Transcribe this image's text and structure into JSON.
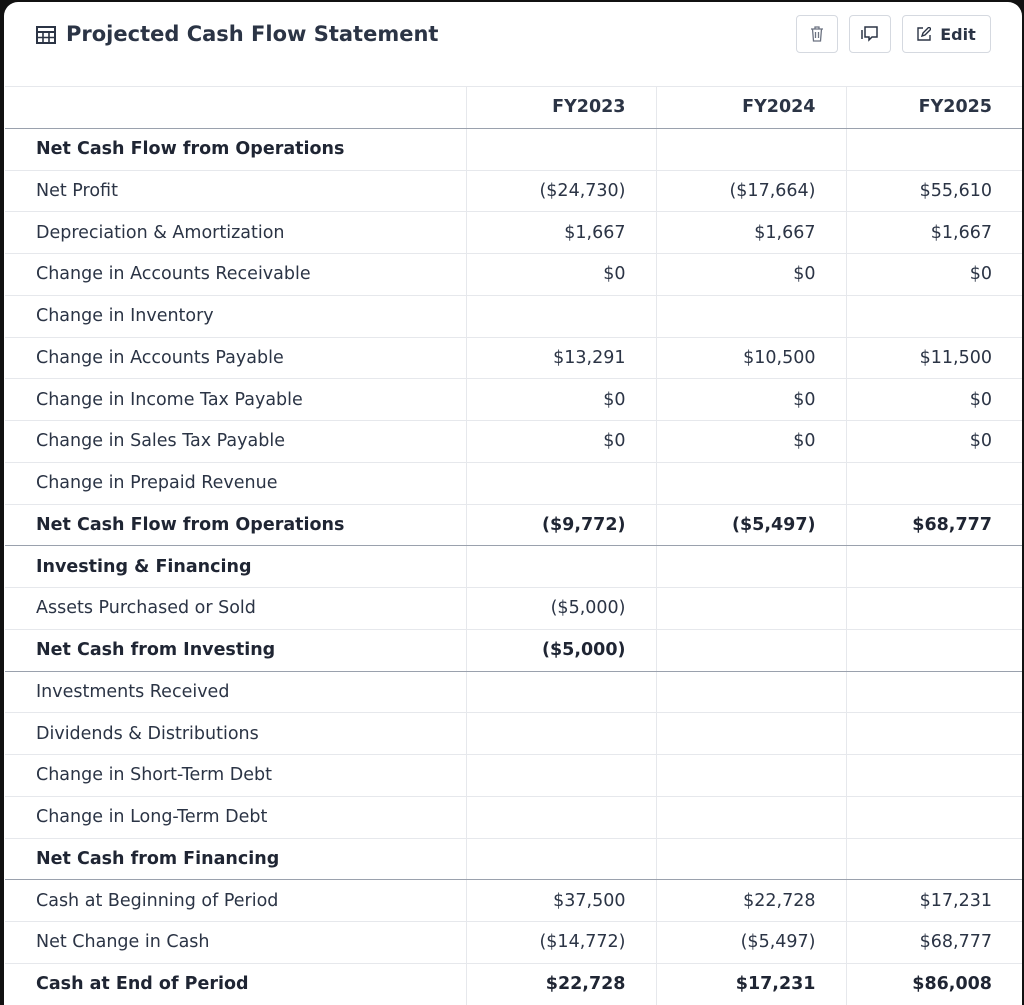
{
  "header": {
    "title": "Projected Cash Flow Statement",
    "edit_button": "Edit"
  },
  "table": {
    "columns": [
      "FY2023",
      "FY2024",
      "FY2025"
    ],
    "rows": [
      {
        "label": "Net Cash Flow from Operations",
        "bold": true,
        "values": [
          null,
          null,
          null
        ]
      },
      {
        "label": "Net Profit",
        "values": [
          "($24,730)",
          "($17,664)",
          "$55,610"
        ]
      },
      {
        "label": "Depreciation & Amortization",
        "values": [
          "$1,667",
          "$1,667",
          "$1,667"
        ]
      },
      {
        "label": "Change in Accounts Receivable",
        "values": [
          "$0",
          "$0",
          "$0"
        ]
      },
      {
        "label": "Change in Inventory",
        "values": [
          null,
          null,
          null
        ]
      },
      {
        "label": "Change in Accounts Payable",
        "values": [
          "$13,291",
          "$10,500",
          "$11,500"
        ]
      },
      {
        "label": "Change in Income Tax Payable",
        "values": [
          "$0",
          "$0",
          "$0"
        ]
      },
      {
        "label": "Change in Sales Tax Payable",
        "values": [
          "$0",
          "$0",
          "$0"
        ]
      },
      {
        "label": "Change in Prepaid Revenue",
        "values": [
          null,
          null,
          null
        ]
      },
      {
        "label": "Net Cash Flow from Operations",
        "bold": true,
        "divider": true,
        "values": [
          "($9,772)",
          "($5,497)",
          "$68,777"
        ]
      },
      {
        "label": "Investing & Financing",
        "bold": true,
        "values": [
          null,
          null,
          null
        ]
      },
      {
        "label": "Assets Purchased or Sold",
        "values": [
          "($5,000)",
          null,
          null
        ]
      },
      {
        "label": "Net Cash from Investing",
        "bold": true,
        "divider": true,
        "values": [
          "($5,000)",
          null,
          null
        ]
      },
      {
        "label": "Investments Received",
        "values": [
          null,
          null,
          null
        ]
      },
      {
        "label": "Dividends & Distributions",
        "values": [
          null,
          null,
          null
        ]
      },
      {
        "label": "Change in Short-Term Debt",
        "values": [
          null,
          null,
          null
        ]
      },
      {
        "label": "Change in Long-Term Debt",
        "values": [
          null,
          null,
          null
        ]
      },
      {
        "label": "Net Cash from Financing",
        "bold": true,
        "divider": true,
        "values": [
          null,
          null,
          null
        ]
      },
      {
        "label": "Cash at Beginning of Period",
        "values": [
          "$37,500",
          "$22,728",
          "$17,231"
        ]
      },
      {
        "label": "Net Change in Cash",
        "values": [
          "($14,772)",
          "($5,497)",
          "$68,777"
        ]
      },
      {
        "label": "Cash at End of Period",
        "bold": true,
        "values": [
          "$22,728",
          "$17,231",
          "$86,008"
        ]
      }
    ]
  }
}
